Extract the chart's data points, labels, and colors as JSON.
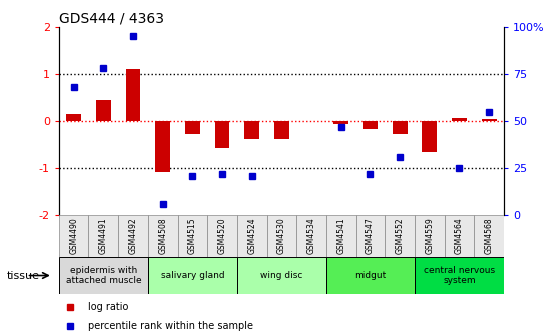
{
  "title": "GDS444 / 4363",
  "samples": [
    "GSM4490",
    "GSM4491",
    "GSM4492",
    "GSM4508",
    "GSM4515",
    "GSM4520",
    "GSM4524",
    "GSM4530",
    "GSM4534",
    "GSM4541",
    "GSM4547",
    "GSM4552",
    "GSM4559",
    "GSM4564",
    "GSM4568"
  ],
  "log_ratio": [
    0.15,
    0.45,
    1.1,
    -1.08,
    -0.28,
    -0.58,
    -0.38,
    -0.38,
    0.0,
    -0.07,
    -0.18,
    -0.27,
    -0.65,
    0.07,
    0.05
  ],
  "percentile": [
    68,
    78,
    95,
    6,
    21,
    22,
    21,
    null,
    null,
    47,
    22,
    31,
    null,
    25,
    55
  ],
  "ylim_left": [
    -2,
    2
  ],
  "yticks_left": [
    -2,
    -1,
    0,
    1,
    2
  ],
  "yticks_right": [
    0,
    25,
    50,
    75,
    100
  ],
  "ytick_labels_right": [
    "0",
    "25",
    "50",
    "75",
    "100%"
  ],
  "bar_color": "#cc0000",
  "dot_color": "#0000cc",
  "tissue_groups": [
    {
      "label": "epidermis with\nattached muscle",
      "start": 0,
      "end": 3,
      "color": "#d9d9d9"
    },
    {
      "label": "salivary gland",
      "start": 3,
      "end": 6,
      "color": "#aaffaa"
    },
    {
      "label": "wing disc",
      "start": 6,
      "end": 9,
      "color": "#aaffaa"
    },
    {
      "label": "midgut",
      "start": 9,
      "end": 12,
      "color": "#55ee55"
    },
    {
      "label": "central nervous\nsystem",
      "start": 12,
      "end": 15,
      "color": "#00dd44"
    }
  ],
  "legend_items": [
    {
      "label": "log ratio",
      "color": "#cc0000"
    },
    {
      "label": "percentile rank within the sample",
      "color": "#0000cc"
    }
  ],
  "tissue_label": "tissue",
  "background_color": "#ffffff"
}
